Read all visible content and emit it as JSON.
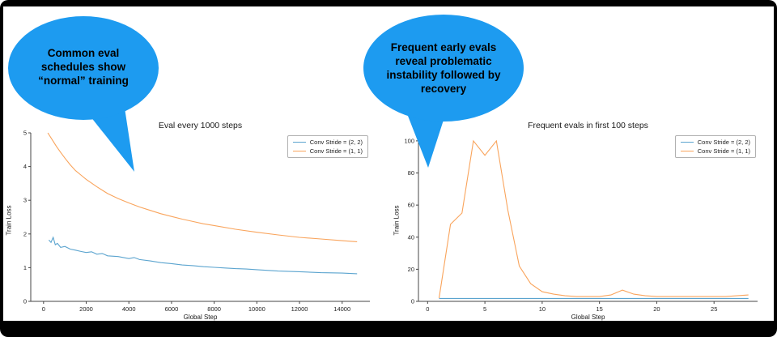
{
  "bubbles": {
    "color": "#1d9bf0",
    "left": {
      "text": "Common eval\nschedules show\n“normal” training"
    },
    "right": {
      "text": "Frequent early evals\nreveal problematic\ninstability followed by\nrecovery"
    }
  },
  "chart_data": [
    {
      "type": "line",
      "title": "Eval every 1000 steps",
      "xlabel": "Global Step",
      "ylabel": "Train Loss",
      "xlim": [
        -600,
        15300
      ],
      "ylim": [
        0,
        5
      ],
      "xticks": [
        0,
        2000,
        4000,
        6000,
        8000,
        10000,
        12000,
        14000
      ],
      "yticks": [
        0,
        1,
        2,
        3,
        4,
        5
      ],
      "grid": false,
      "legend_position": "upper right",
      "series": [
        {
          "name": "Conv Stride = (2, 2)",
          "color": "#5ba4cf",
          "x": [
            250,
            350,
            450,
            550,
            650,
            800,
            1000,
            1250,
            1500,
            1750,
            2000,
            2250,
            2500,
            2750,
            3000,
            3500,
            4000,
            4250,
            4500,
            5000,
            5500,
            6000,
            6500,
            7000,
            7500,
            8000,
            8500,
            9000,
            9500,
            10000,
            11000,
            12000,
            13000,
            14000,
            14700
          ],
          "y": [
            1.82,
            1.75,
            1.9,
            1.68,
            1.72,
            1.6,
            1.63,
            1.55,
            1.52,
            1.48,
            1.45,
            1.47,
            1.4,
            1.42,
            1.35,
            1.33,
            1.27,
            1.3,
            1.24,
            1.2,
            1.15,
            1.12,
            1.08,
            1.06,
            1.03,
            1.01,
            0.99,
            0.97,
            0.96,
            0.94,
            0.9,
            0.88,
            0.85,
            0.84,
            0.82
          ]
        },
        {
          "name": "Conv Stride = (1, 1)",
          "color": "#f9a45c",
          "x": [
            200,
            400,
            600,
            800,
            1000,
            1250,
            1500,
            1750,
            2000,
            2500,
            3000,
            3500,
            4000,
            4500,
            5000,
            5500,
            6000,
            6500,
            7000,
            7500,
            8000,
            9000,
            10000,
            11000,
            12000,
            13000,
            14000,
            14700
          ],
          "y": [
            5.0,
            4.8,
            4.6,
            4.42,
            4.25,
            4.05,
            3.88,
            3.75,
            3.62,
            3.4,
            3.2,
            3.05,
            2.92,
            2.8,
            2.7,
            2.6,
            2.52,
            2.44,
            2.37,
            2.3,
            2.25,
            2.14,
            2.05,
            1.97,
            1.9,
            1.85,
            1.8,
            1.77
          ]
        }
      ]
    },
    {
      "type": "line",
      "title": "Frequent evals in first 100 steps",
      "xlabel": "Global Step",
      "ylabel": "Train Loss",
      "xlim": [
        -0.8,
        28.8
      ],
      "ylim": [
        0,
        105
      ],
      "xticks": [
        0,
        5,
        10,
        15,
        20,
        25
      ],
      "yticks": [
        0,
        20,
        40,
        60,
        80,
        100
      ],
      "grid": false,
      "legend_position": "upper right",
      "series": [
        {
          "name": "Conv Stride = (2, 2)",
          "color": "#5ba4cf",
          "x": [
            1,
            2,
            3,
            4,
            5,
            6,
            7,
            8,
            9,
            10,
            11,
            12,
            13,
            14,
            15,
            16,
            17,
            18,
            19,
            20,
            21,
            22,
            23,
            24,
            25,
            26,
            27,
            28
          ],
          "y": [
            1.8,
            1.8,
            1.8,
            1.8,
            1.8,
            1.8,
            1.8,
            1.8,
            1.8,
            1.8,
            1.8,
            1.8,
            1.8,
            1.8,
            1.8,
            1.8,
            1.8,
            1.8,
            1.8,
            1.8,
            1.8,
            1.8,
            1.8,
            1.8,
            1.8,
            1.8,
            1.8,
            1.8
          ]
        },
        {
          "name": "Conv Stride = (1, 1)",
          "color": "#f9a45c",
          "x": [
            1,
            2,
            3,
            4,
            5,
            6,
            7,
            8,
            9,
            10,
            11,
            12,
            13,
            14,
            15,
            16,
            17,
            18,
            19,
            20,
            21,
            22,
            23,
            24,
            25,
            26,
            27,
            28
          ],
          "y": [
            2,
            48,
            55,
            100,
            91,
            100,
            57,
            22,
            11,
            6,
            4.5,
            3.5,
            3,
            3,
            3,
            4,
            7,
            4.5,
            3.5,
            3,
            3,
            3,
            3,
            3,
            3,
            3,
            3.5,
            4
          ]
        }
      ]
    }
  ]
}
